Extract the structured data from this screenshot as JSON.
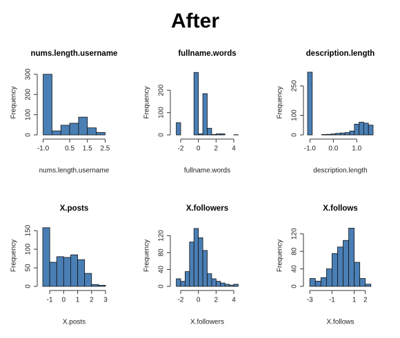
{
  "title": "After",
  "chart_data": [
    {
      "type": "histogram",
      "title": "nums.length.username",
      "xlabel": "nums.length.username",
      "ylabel": "Frequency",
      "color": "#4a7fb5",
      "bins": [
        -1.0,
        -0.5,
        0,
        0.5,
        1.0,
        1.5,
        2.0,
        2.5
      ],
      "values": [
        300,
        20,
        48,
        58,
        88,
        35,
        12
      ],
      "xlim": [
        -1.1,
        2.6
      ],
      "xticks": [
        {
          "value": -1,
          "label": "-1.0"
        },
        0.5,
        1.5,
        2.5
      ],
      "ylim": [
        0,
        320
      ],
      "yticks": [
        0,
        100,
        200,
        300
      ]
    },
    {
      "type": "histogram",
      "title": "fullname.words",
      "xlabel": "fullname.words",
      "ylabel": "Frequency",
      "color": "#4a7fb5",
      "bins": [
        -2.5,
        -2.0,
        -1.5,
        -1.0,
        -0.5,
        0,
        0.5,
        1.0,
        1.5,
        2.0,
        2.5,
        3.0,
        3.5,
        4.0,
        4.5
      ],
      "values": [
        55,
        0,
        0,
        0,
        280,
        5,
        185,
        30,
        2,
        5,
        5,
        0,
        0,
        1
      ],
      "xlim": [
        -2.7,
        4.7
      ],
      "xticks": [
        -2,
        0,
        2,
        4
      ],
      "ylim": [
        0,
        290
      ],
      "yticks": [
        0,
        100,
        200
      ]
    },
    {
      "type": "histogram",
      "title": "description.length",
      "xlabel": "description.length",
      "ylabel": "Frequency",
      "color": "#4a7fb5",
      "bins": [
        -1.1,
        -0.9,
        -0.7,
        -0.5,
        -0.3,
        -0.1,
        0.1,
        0.3,
        0.5,
        0.7,
        0.9,
        1.1,
        1.3,
        1.5,
        1.7
      ],
      "values": [
        320,
        0,
        0,
        2,
        3,
        5,
        8,
        10,
        12,
        20,
        55,
        65,
        60,
        50
      ],
      "xlim": [
        -1.1,
        1.7
      ],
      "xticks": [
        {
          "value": -1,
          "label": "-1.0"
        },
        {
          "value": 0,
          "label": "0.0"
        },
        {
          "value": 1,
          "label": "1.0"
        }
      ],
      "ylim": [
        0,
        330
      ],
      "yticks": [
        0,
        100,
        250
      ]
    },
    {
      "type": "histogram",
      "title": "X.posts",
      "xlabel": "X.posts",
      "ylabel": "Frequency",
      "color": "#4a7fb5",
      "bins": [
        -1.5,
        -1.0,
        -0.5,
        0,
        0.5,
        1.0,
        1.5,
        2.0,
        2.5,
        3.0
      ],
      "values": [
        158,
        65,
        80,
        78,
        85,
        72,
        35,
        5,
        3
      ],
      "xlim": [
        -1.6,
        3.1
      ],
      "xticks": [
        -1,
        0,
        1,
        2,
        3
      ],
      "ylim": [
        0,
        165
      ],
      "yticks": [
        0,
        50,
        100,
        150
      ]
    },
    {
      "type": "histogram",
      "title": "X.followers",
      "xlabel": "X.followers",
      "ylabel": "Frequency",
      "color": "#4a7fb5",
      "bins": [
        -2.5,
        -2.0,
        -1.5,
        -1.0,
        -0.5,
        0,
        0.5,
        1.0,
        1.5,
        2.0,
        2.5,
        3.0,
        3.5,
        4.0,
        4.5
      ],
      "values": [
        18,
        12,
        35,
        105,
        137,
        115,
        85,
        30,
        18,
        12,
        8,
        5,
        3,
        5
      ],
      "xlim": [
        -2.7,
        4.7
      ],
      "xticks": [
        -2,
        0,
        2,
        4
      ],
      "ylim": [
        0,
        145
      ],
      "yticks": [
        0,
        40,
        80,
        120
      ]
    },
    {
      "type": "histogram",
      "title": "X.follows",
      "xlabel": "X.follows",
      "ylabel": "Frequency",
      "color": "#4a7fb5",
      "bins": [
        -3.0,
        -2.5,
        -2.0,
        -1.5,
        -1.0,
        -0.5,
        0,
        0.5,
        1.0,
        1.5,
        2.0,
        2.5
      ],
      "values": [
        18,
        12,
        20,
        40,
        75,
        90,
        105,
        133,
        55,
        18,
        5
      ],
      "xlim": [
        -3.2,
        2.7
      ],
      "xticks": [
        -3,
        -1,
        1,
        2
      ],
      "ylim": [
        0,
        140
      ],
      "yticks": [
        0,
        40,
        80,
        120
      ]
    }
  ]
}
